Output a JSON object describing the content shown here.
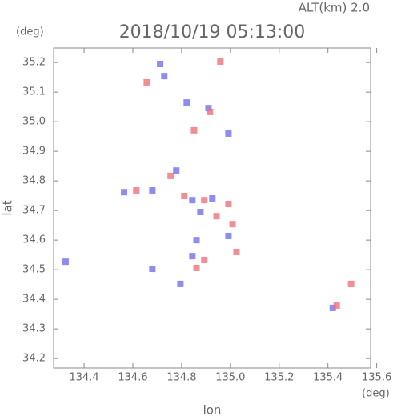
{
  "chart_data": {
    "type": "scatter",
    "title": "2018/10/19 05:13:00",
    "subtitle": "ALT(km) 2.0",
    "x_label": "lon",
    "y_label": "lat",
    "x_unit": "(deg)",
    "y_unit": "(deg)",
    "xlim": [
      134.275,
      135.575
    ],
    "ylim": [
      34.168,
      35.249
    ],
    "xticks": [
      134.4,
      134.6,
      134.8,
      {
        "value": 135,
        "label": "135.0"
      },
      135.2,
      135.4,
      135.6
    ],
    "yticks": [
      34.2,
      34.3,
      34.4,
      34.5,
      34.6,
      34.7,
      34.8,
      34.9,
      {
        "value": 35,
        "label": "35.0"
      },
      35.1,
      35.2
    ],
    "series": [
      {
        "color": "#6f6ff0",
        "x": [
          134.712,
          134.729,
          134.821,
          134.91,
          134.992,
          134.778,
          134.564,
          134.68,
          134.844,
          134.926,
          134.877,
          134.992,
          134.861,
          134.844,
          134.324,
          134.68,
          134.795,
          135.42
        ],
        "values": [
          35.195,
          35.154,
          35.065,
          35.046,
          34.96,
          34.835,
          34.762,
          34.768,
          34.735,
          34.741,
          34.695,
          34.614,
          34.6,
          34.546,
          34.527,
          34.503,
          34.452,
          34.371
        ]
      },
      {
        "color": "#f06f7a",
        "x": [
          134.959,
          134.657,
          134.916,
          134.851,
          134.755,
          134.614,
          134.811,
          134.893,
          134.992,
          134.943,
          135.009,
          135.025,
          134.893,
          134.861,
          135.495,
          135.436
        ],
        "values": [
          35.203,
          35.133,
          35.033,
          34.971,
          34.817,
          34.768,
          34.749,
          34.735,
          34.722,
          34.681,
          34.654,
          34.56,
          34.533,
          34.506,
          34.452,
          34.379
        ]
      }
    ]
  }
}
